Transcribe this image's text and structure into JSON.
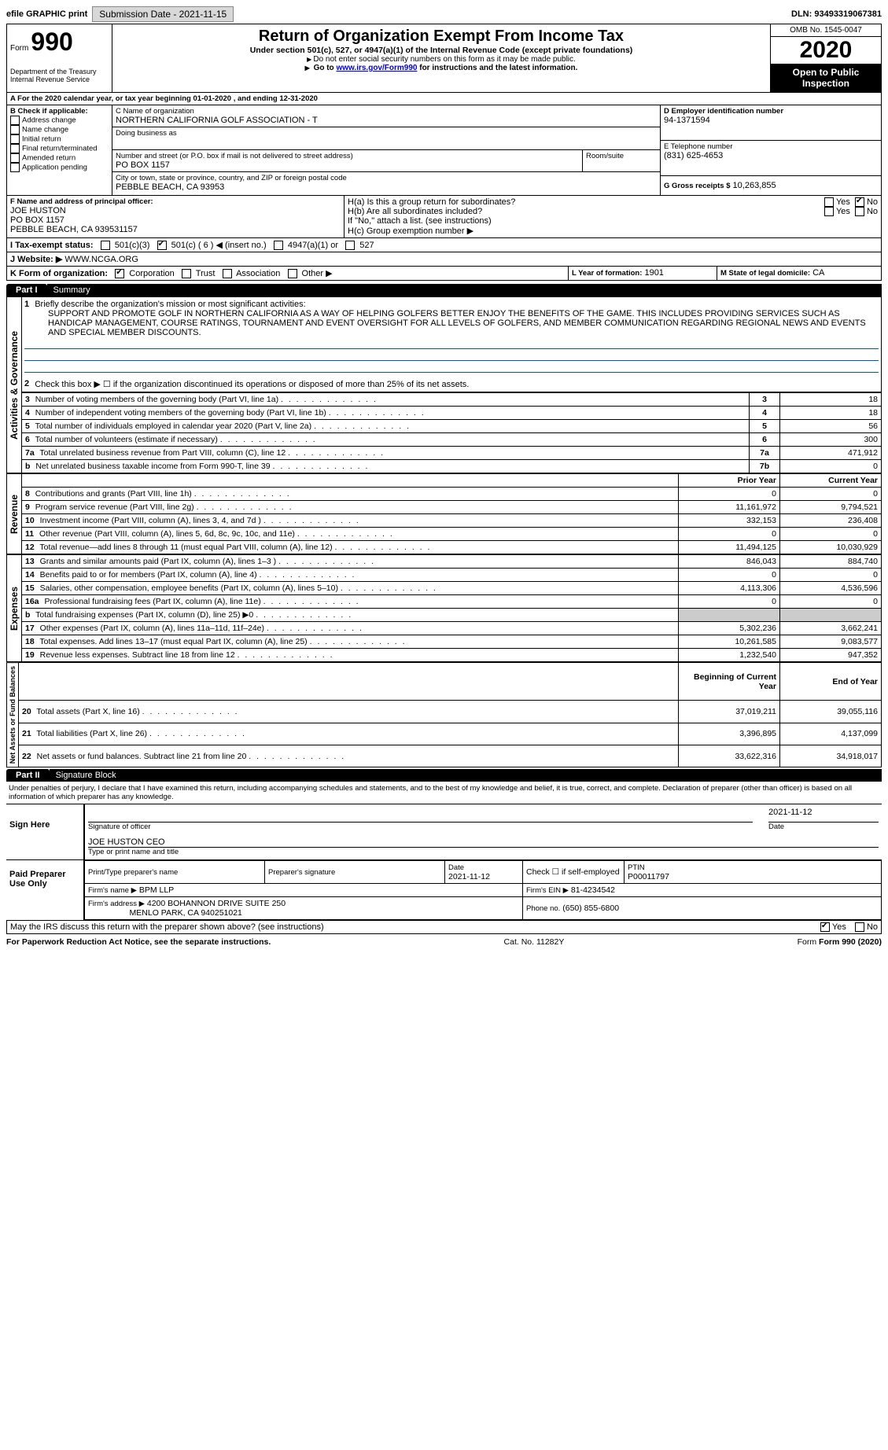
{
  "top": {
    "efile_label": "efile GRAPHIC print",
    "submission_btn": "Submission Date - 2021-11-15",
    "dln": "DLN: 93493319067381"
  },
  "header": {
    "form_word": "Form",
    "form_num": "990",
    "dept": "Department of the Treasury\nInternal Revenue Service",
    "title": "Return of Organization Exempt From Income Tax",
    "subtitle": "Under section 501(c), 527, or 4947(a)(1) of the Internal Revenue Code (except private foundations)",
    "note1": "Do not enter social security numbers on this form as it may be made public.",
    "note2_pre": "Go to ",
    "note2_link": "www.irs.gov/Form990",
    "note2_post": " for instructions and the latest information.",
    "omb": "OMB No. 1545-0047",
    "year": "2020",
    "open_pub": "Open to Public Inspection"
  },
  "periodA": {
    "text_pre": "For the 2020 calendar year, or tax year beginning ",
    "begin": "01-01-2020",
    "mid": " , and ending ",
    "end": "12-31-2020"
  },
  "boxB": {
    "label": "B Check if applicable:",
    "items": [
      "Address change",
      "Name change",
      "Initial return",
      "Final return/terminated",
      "Amended return",
      "Application pending"
    ]
  },
  "boxC": {
    "label": "C Name of organization",
    "name": "NORTHERN CALIFORNIA GOLF ASSOCIATION - T",
    "dba_label": "Doing business as",
    "street_label": "Number and street (or P.O. box if mail is not delivered to street address)",
    "street": "PO BOX 1157",
    "room_label": "Room/suite",
    "city_label": "City or town, state or province, country, and ZIP or foreign postal code",
    "city": "PEBBLE BEACH, CA  93953"
  },
  "boxD": {
    "label": "D Employer identification number",
    "value": "94-1371594"
  },
  "boxE": {
    "label": "E Telephone number",
    "value": "(831) 625-4653"
  },
  "boxG": {
    "label": "G Gross receipts $",
    "value": "10,263,855"
  },
  "boxF": {
    "label": "F  Name and address of principal officer:",
    "name": "JOE HUSTON",
    "line2": "PO BOX 1157",
    "line3": "PEBBLE BEACH, CA  939531157"
  },
  "boxH": {
    "a": "H(a)  Is this a group return for subordinates?",
    "b": "H(b)  Are all subordinates included?",
    "ifno": "If \"No,\" attach a list. (see instructions)",
    "c": "H(c)  Group exemption number ▶",
    "yes": "Yes",
    "no": "No"
  },
  "taxI": {
    "label": "I  Tax-exempt status:",
    "opts": [
      "501(c)(3)",
      "501(c) ( 6 ) ◀ (insert no.)",
      "4947(a)(1) or",
      "527"
    ]
  },
  "boxJ": {
    "label": "J  Website: ▶",
    "value": "WWW.NCGA.ORG"
  },
  "boxK": {
    "label": "K Form of organization:",
    "opts": [
      "Corporation",
      "Trust",
      "Association",
      "Other ▶"
    ]
  },
  "boxL": {
    "label": "L Year of formation:",
    "value": "1901"
  },
  "boxM": {
    "label": "M State of legal domicile:",
    "value": "CA"
  },
  "part1": {
    "tab": "Part I",
    "title": "Summary",
    "line1_label": "Briefly describe the organization's mission or most significant activities:",
    "mission": "SUPPORT AND PROMOTE GOLF IN NORTHERN CALIFORNIA AS A WAY OF HELPING GOLFERS BETTER ENJOY THE BENEFITS OF THE GAME. THIS INCLUDES PROVIDING SERVICES SUCH AS HANDICAP MANAGEMENT, COURSE RATINGS, TOURNAMENT AND EVENT OVERSIGHT FOR ALL LEVELS OF GOLFERS, AND MEMBER COMMUNICATION REGARDING REGIONAL NEWS AND EVENTS AND SPECIAL MEMBER DISCOUNTS.",
    "line2": "Check this box ▶ ☐ if the organization discontinued its operations or disposed of more than 25% of its net assets.",
    "gov_rows": [
      {
        "n": "3",
        "t": "Number of voting members of the governing body (Part VI, line 1a)",
        "box": "3",
        "v": "18"
      },
      {
        "n": "4",
        "t": "Number of independent voting members of the governing body (Part VI, line 1b)",
        "box": "4",
        "v": "18"
      },
      {
        "n": "5",
        "t": "Total number of individuals employed in calendar year 2020 (Part V, line 2a)",
        "box": "5",
        "v": "56"
      },
      {
        "n": "6",
        "t": "Total number of volunteers (estimate if necessary)",
        "box": "6",
        "v": "300"
      },
      {
        "n": "7a",
        "t": "Total unrelated business revenue from Part VIII, column (C), line 12",
        "box": "7a",
        "v": "471,912"
      },
      {
        "n": "b",
        "t": "Net unrelated business taxable income from Form 990-T, line 39",
        "box": "7b",
        "v": "0"
      }
    ],
    "hdr_prior": "Prior Year",
    "hdr_current": "Current Year",
    "rev_rows": [
      {
        "n": "8",
        "t": "Contributions and grants (Part VIII, line 1h)",
        "p": "0",
        "c": "0"
      },
      {
        "n": "9",
        "t": "Program service revenue (Part VIII, line 2g)",
        "p": "11,161,972",
        "c": "9,794,521"
      },
      {
        "n": "10",
        "t": "Investment income (Part VIII, column (A), lines 3, 4, and 7d )",
        "p": "332,153",
        "c": "236,408"
      },
      {
        "n": "11",
        "t": "Other revenue (Part VIII, column (A), lines 5, 6d, 8c, 9c, 10c, and 11e)",
        "p": "0",
        "c": "0"
      },
      {
        "n": "12",
        "t": "Total revenue—add lines 8 through 11 (must equal Part VIII, column (A), line 12)",
        "p": "11,494,125",
        "c": "10,030,929"
      }
    ],
    "exp_rows": [
      {
        "n": "13",
        "t": "Grants and similar amounts paid (Part IX, column (A), lines 1–3 )",
        "p": "846,043",
        "c": "884,740"
      },
      {
        "n": "14",
        "t": "Benefits paid to or for members (Part IX, column (A), line 4)",
        "p": "0",
        "c": "0"
      },
      {
        "n": "15",
        "t": "Salaries, other compensation, employee benefits (Part IX, column (A), lines 5–10)",
        "p": "4,113,306",
        "c": "4,536,596"
      },
      {
        "n": "16a",
        "t": "Professional fundraising fees (Part IX, column (A), line 11e)",
        "p": "0",
        "c": "0"
      },
      {
        "n": "b",
        "t": "Total fundraising expenses (Part IX, column (D), line 25) ▶0",
        "p": "",
        "c": ""
      },
      {
        "n": "17",
        "t": "Other expenses (Part IX, column (A), lines 11a–11d, 11f–24e)",
        "p": "5,302,236",
        "c": "3,662,241"
      },
      {
        "n": "18",
        "t": "Total expenses. Add lines 13–17 (must equal Part IX, column (A), line 25)",
        "p": "10,261,585",
        "c": "9,083,577"
      },
      {
        "n": "19",
        "t": "Revenue less expenses. Subtract line 18 from line 12",
        "p": "1,232,540",
        "c": "947,352"
      }
    ],
    "hdr_boy": "Beginning of Current Year",
    "hdr_eoy": "End of Year",
    "na_rows": [
      {
        "n": "20",
        "t": "Total assets (Part X, line 16)",
        "p": "37,019,211",
        "c": "39,055,116"
      },
      {
        "n": "21",
        "t": "Total liabilities (Part X, line 26)",
        "p": "3,396,895",
        "c": "4,137,099"
      },
      {
        "n": "22",
        "t": "Net assets or fund balances. Subtract line 21 from line 20",
        "p": "33,622,316",
        "c": "34,918,017"
      }
    ],
    "vlabels": {
      "gov": "Activities & Governance",
      "rev": "Revenue",
      "exp": "Expenses",
      "na": "Net Assets or Fund Balances"
    }
  },
  "part2": {
    "tab": "Part II",
    "title": "Signature Block",
    "penalties": "Under penalties of perjury, I declare that I have examined this return, including accompanying schedules and statements, and to the best of my knowledge and belief, it is true, correct, and complete. Declaration of preparer (other than officer) is based on all information of which preparer has any knowledge.",
    "sign_here": "Sign Here",
    "sig_officer": "Signature of officer",
    "date_label": "Date",
    "sig_date": "2021-11-12",
    "officer_name": "JOE HUSTON CEO",
    "type_name": "Type or print name and title",
    "paid": "Paid Preparer Use Only",
    "prep_name_l": "Print/Type preparer's name",
    "prep_sig_l": "Preparer's signature",
    "prep_date_l": "Date",
    "prep_date": "2021-11-12",
    "check_self": "Check ☐ if self-employed",
    "ptin_l": "PTIN",
    "ptin": "P00011797",
    "firm_name_l": "Firm's name  ▶",
    "firm_name": "BPM LLP",
    "firm_ein_l": "Firm's EIN ▶",
    "firm_ein": "81-4234542",
    "firm_addr_l": "Firm's address ▶",
    "firm_addr": "4200 BOHANNON DRIVE SUITE 250",
    "firm_city": "MENLO PARK, CA  940251021",
    "phone_l": "Phone no.",
    "phone": "(650) 855-6800",
    "discuss": "May the IRS discuss this return with the preparer shown above? (see instructions)",
    "yes": "Yes",
    "no": "No"
  },
  "footer": {
    "pra": "For Paperwork Reduction Act Notice, see the separate instructions.",
    "cat": "Cat. No. 11282Y",
    "form": "Form 990 (2020)"
  }
}
